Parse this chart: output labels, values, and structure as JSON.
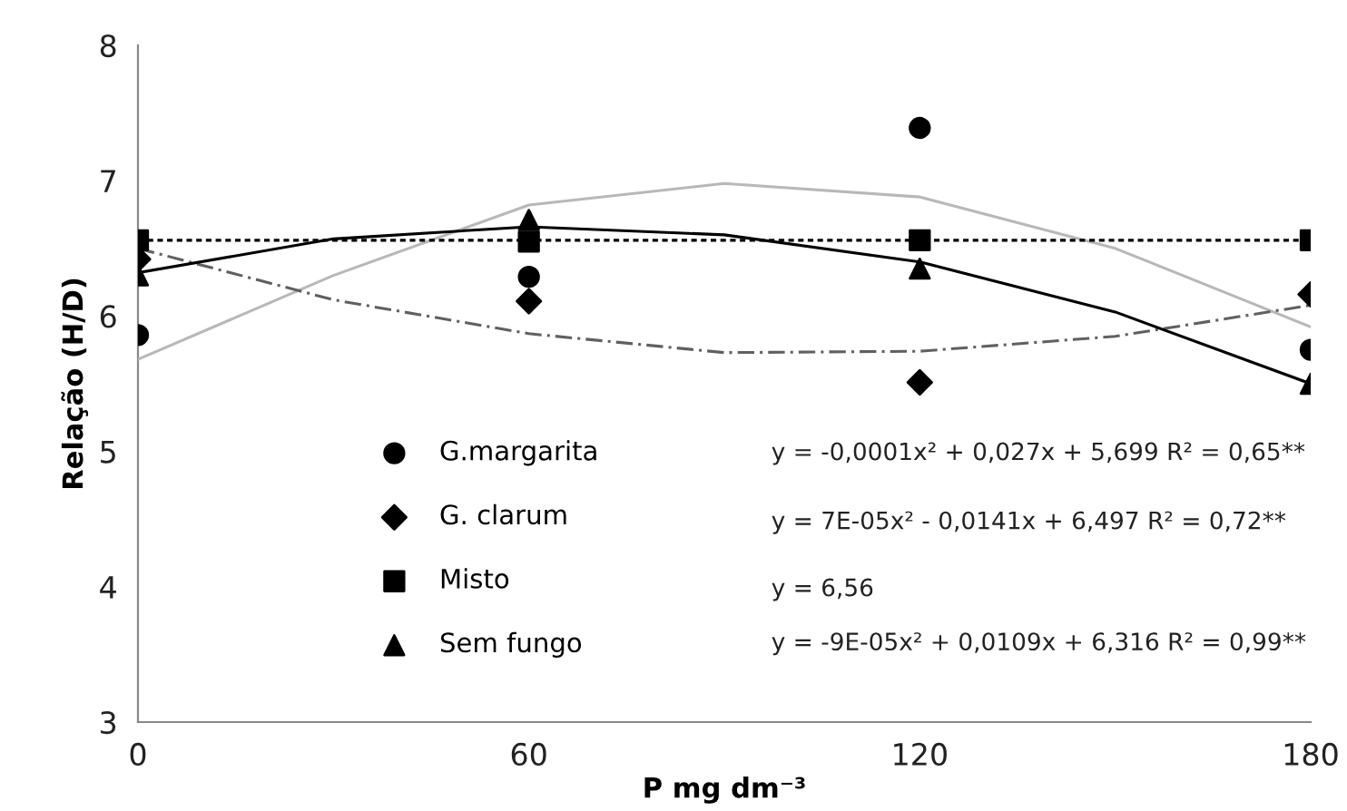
{
  "chart_data": {
    "type": "scatter",
    "xlabel": "P mg dm⁻³",
    "ylabel": "Relação (H/D)",
    "x": [
      0,
      60,
      120,
      180
    ],
    "xlim": [
      0,
      180
    ],
    "xticks": [
      0,
      60,
      120,
      180
    ],
    "ylim": [
      3,
      8
    ],
    "yticks": [
      3,
      4,
      5,
      6,
      7,
      8
    ],
    "grid": false,
    "legend": "bottom",
    "series": [
      {
        "name": "G.margarita",
        "color": "#000000",
        "marker": "circle",
        "values": [
          5.86,
          6.29,
          7.39,
          5.75
        ]
      },
      {
        "name": "G. clarum",
        "color": "#000000",
        "marker": "diamond",
        "values": [
          6.42,
          6.11,
          5.51,
          6.16
        ]
      },
      {
        "name": "Misto",
        "color": "#000000",
        "marker": "square",
        "values": [
          6.56,
          6.55,
          6.56,
          6.56
        ]
      },
      {
        "name": "Sem fungo",
        "color": "#000000",
        "marker": "triangle",
        "values": [
          6.3,
          6.71,
          6.35,
          5.5
        ]
      },
      {
        "type": "line",
        "color": "#b8b8b8",
        "line_style": "solid",
        "x": [
          0,
          30,
          60,
          90,
          120,
          150,
          180
        ],
        "values": [
          5.68,
          6.3,
          6.82,
          6.98,
          6.88,
          6.5,
          5.92
        ]
      },
      {
        "type": "line",
        "color": "#606060",
        "line_style": "dashed",
        "x": [
          0,
          30,
          60,
          90,
          120,
          150,
          180
        ],
        "values": [
          6.5,
          6.12,
          5.87,
          5.73,
          5.74,
          5.85,
          6.08
        ]
      },
      {
        "type": "line",
        "color": "#000000",
        "line_style": "dotted",
        "x": [
          0,
          180
        ],
        "values": [
          6.56,
          6.56
        ]
      },
      {
        "type": "line",
        "color": "#000000",
        "line_style": "solid",
        "x": [
          0,
          30,
          60,
          90,
          120,
          150,
          180
        ],
        "values": [
          6.32,
          6.57,
          6.66,
          6.6,
          6.4,
          6.03,
          5.5
        ]
      }
    ],
    "annotations": [
      "y = -0,0001x² + 0,027x + 5,699 R² = 0,65**",
      "y = 7E-05x² - 0,0141x + 6,497 R² = 0,72**",
      "y = 6,56",
      "y = -9E-05x² + 0,0109x + 6,316 R² = 0,99**"
    ]
  }
}
